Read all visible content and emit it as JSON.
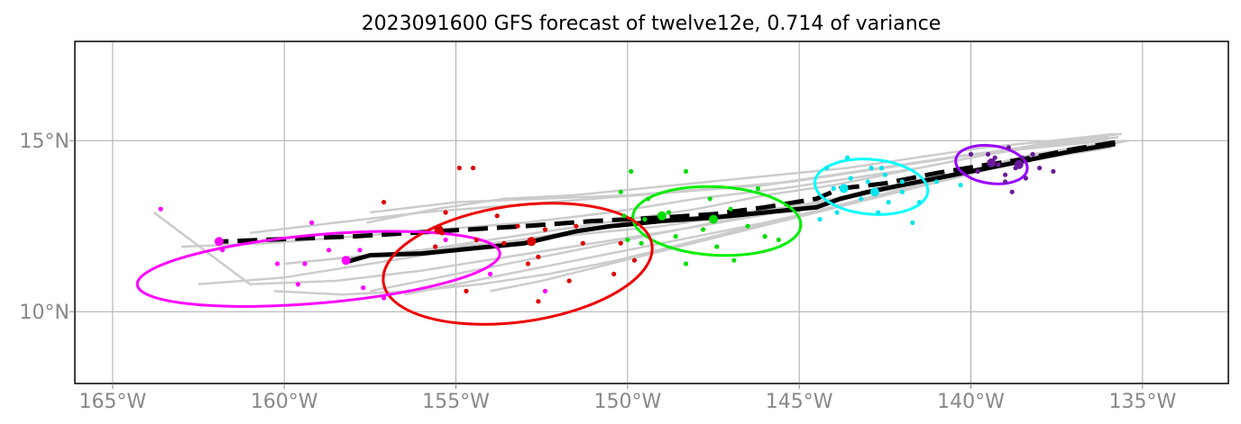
{
  "chart_data": {
    "type": "map-track",
    "title": "2023091600 GFS forecast of twelve12e, 0.714 of variance",
    "xlim": [
      -166.1,
      -132.5
    ],
    "ylim": [
      7.9,
      17.9
    ],
    "x_ticks": [
      -165,
      -160,
      -155,
      -150,
      -145,
      -140,
      -135
    ],
    "x_tick_labels": [
      "165°W",
      "160°W",
      "155°W",
      "150°W",
      "145°W",
      "140°W",
      "135°W"
    ],
    "y_ticks": [
      10,
      15
    ],
    "y_tick_labels": [
      "10°N",
      "15°N"
    ],
    "grid": true,
    "ensemble_color": "#cccccc",
    "ensemble_tracks": [
      [
        [
          -135.5,
          15.0
        ],
        [
          -137,
          14.8
        ],
        [
          -139,
          14.4
        ],
        [
          -141,
          13.9
        ],
        [
          -143,
          13.5
        ],
        [
          -145,
          13.1
        ],
        [
          -147.5,
          12.8
        ],
        [
          -150,
          12.6
        ],
        [
          -152.5,
          12.2
        ],
        [
          -155,
          11.8
        ],
        [
          -157.5,
          11.4
        ],
        [
          -160,
          11.0
        ],
        [
          -162.5,
          10.8
        ]
      ],
      [
        [
          -135.7,
          15.1
        ],
        [
          -137.5,
          14.9
        ],
        [
          -139.5,
          14.6
        ],
        [
          -141.5,
          14.2
        ],
        [
          -143.5,
          13.9
        ],
        [
          -145.5,
          13.6
        ],
        [
          -148,
          13.3
        ],
        [
          -150.5,
          12.9
        ],
        [
          -153,
          12.6
        ],
        [
          -155.5,
          12.4
        ],
        [
          -158,
          12.2
        ],
        [
          -160.5,
          12.0
        ],
        [
          -163,
          11.9
        ]
      ],
      [
        [
          -135.8,
          14.9
        ],
        [
          -137.5,
          14.6
        ],
        [
          -139.5,
          14.2
        ],
        [
          -141.5,
          13.8
        ],
        [
          -143.5,
          13.4
        ],
        [
          -145.5,
          13.0
        ],
        [
          -148,
          12.5
        ],
        [
          -150.5,
          12.0
        ],
        [
          -153,
          11.5
        ],
        [
          -155.5,
          11.0
        ],
        [
          -157.5,
          10.6
        ]
      ],
      [
        [
          -136,
          15.0
        ],
        [
          -138,
          14.8
        ],
        [
          -140,
          14.6
        ],
        [
          -142,
          14.3
        ],
        [
          -144,
          14.0
        ],
        [
          -146,
          13.7
        ],
        [
          -148.5,
          13.5
        ],
        [
          -151,
          13.3
        ],
        [
          -153.5,
          13.1
        ],
        [
          -156,
          12.9
        ],
        [
          -158.5,
          12.6
        ],
        [
          -161,
          12.3
        ]
      ],
      [
        [
          -135.9,
          14.8
        ],
        [
          -137.8,
          14.5
        ],
        [
          -139.8,
          14.1
        ],
        [
          -141.8,
          13.6
        ],
        [
          -143.8,
          13.1
        ],
        [
          -146,
          12.6
        ],
        [
          -148.5,
          12.1
        ],
        [
          -151,
          11.6
        ],
        [
          -153.5,
          11.1
        ],
        [
          -155.5,
          10.7
        ],
        [
          -156.5,
          10.5
        ]
      ],
      [
        [
          -135.6,
          15.2
        ],
        [
          -137.2,
          15.0
        ],
        [
          -139.2,
          14.7
        ],
        [
          -141.2,
          14.4
        ],
        [
          -143.2,
          14.1
        ],
        [
          -145.2,
          13.8
        ],
        [
          -147.5,
          13.6
        ],
        [
          -150,
          13.4
        ],
        [
          -152.5,
          13.3
        ],
        [
          -155,
          13.2
        ],
        [
          -157.5,
          12.9
        ]
      ],
      [
        [
          -136.2,
          14.9
        ],
        [
          -138.2,
          14.6
        ],
        [
          -140.2,
          14.1
        ],
        [
          -142.2,
          13.6
        ],
        [
          -144.2,
          13.2
        ],
        [
          -146.2,
          12.8
        ],
        [
          -148.5,
          12.4
        ],
        [
          -151,
          12.0
        ],
        [
          -153.5,
          11.6
        ],
        [
          -156,
          11.2
        ],
        [
          -158.5,
          10.9
        ],
        [
          -161,
          10.8
        ],
        [
          -163.8,
          12.9
        ]
      ],
      [
        [
          -135.4,
          15.0
        ],
        [
          -137,
          14.7
        ],
        [
          -139,
          14.3
        ],
        [
          -141,
          13.9
        ],
        [
          -143,
          13.5
        ],
        [
          -145,
          13.1
        ],
        [
          -147,
          12.8
        ],
        [
          -149,
          12.5
        ],
        [
          -151,
          12.3
        ],
        [
          -153,
          12.1
        ],
        [
          -155,
          11.9
        ],
        [
          -157,
          11.7
        ],
        [
          -159,
          11.5
        ]
      ],
      [
        [
          -136,
          15.1
        ],
        [
          -138,
          14.9
        ],
        [
          -140,
          14.5
        ],
        [
          -142,
          14.1
        ],
        [
          -144,
          13.7
        ],
        [
          -146,
          13.4
        ],
        [
          -148,
          13.0
        ],
        [
          -150,
          12.7
        ],
        [
          -152,
          12.4
        ],
        [
          -154,
          12.1
        ],
        [
          -156,
          11.8
        ],
        [
          -158,
          11.6
        ],
        [
          -160,
          11.4
        ]
      ],
      [
        [
          -136.5,
          14.8
        ],
        [
          -138.5,
          14.4
        ],
        [
          -140.5,
          13.9
        ],
        [
          -142.5,
          13.4
        ],
        [
          -144.5,
          12.9
        ],
        [
          -146.5,
          12.4
        ],
        [
          -148.5,
          11.9
        ],
        [
          -150.5,
          11.4
        ],
        [
          -152.5,
          10.9
        ],
        [
          -154,
          10.6
        ]
      ],
      [
        [
          -135.8,
          15.2
        ],
        [
          -137.6,
          15.0
        ],
        [
          -139.6,
          14.8
        ],
        [
          -141.6,
          14.5
        ],
        [
          -143.6,
          14.2
        ],
        [
          -145.6,
          14.0
        ],
        [
          -147.6,
          13.8
        ],
        [
          -149.6,
          13.6
        ],
        [
          -151.6,
          13.4
        ],
        [
          -153.6,
          13.3
        ],
        [
          -155.6,
          13.0
        ],
        [
          -157.6,
          12.6
        ]
      ],
      [
        [
          -136.3,
          14.9
        ],
        [
          -138.3,
          14.5
        ],
        [
          -140.3,
          14.0
        ],
        [
          -142.3,
          13.5
        ],
        [
          -144.3,
          13.0
        ],
        [
          -146.3,
          12.5
        ],
        [
          -148.3,
          12.0
        ],
        [
          -150.3,
          11.5
        ],
        [
          -152.3,
          11.1
        ],
        [
          -154.3,
          10.8
        ],
        [
          -156.3,
          10.6
        ],
        [
          -158.3,
          10.5
        ],
        [
          -160.3,
          10.6
        ]
      ]
    ],
    "series": [
      {
        "style": "solid",
        "points": [
          [
            -135.8,
            14.9
          ],
          [
            -137,
            14.7
          ],
          [
            -138,
            14.5
          ],
          [
            -139,
            14.3
          ],
          [
            -140,
            14.1
          ],
          [
            -141,
            13.9
          ],
          [
            -142,
            13.7
          ],
          [
            -143,
            13.5
          ],
          [
            -143.8,
            13.3
          ],
          [
            -144.5,
            13.05
          ],
          [
            -146,
            12.9
          ],
          [
            -147.5,
            12.75
          ],
          [
            -149,
            12.65
          ],
          [
            -150.5,
            12.5
          ],
          [
            -151.5,
            12.35
          ],
          [
            -153,
            12.0
          ],
          [
            -154.5,
            11.85
          ],
          [
            -156,
            11.7
          ],
          [
            -157.5,
            11.65
          ],
          [
            -158.2,
            11.45
          ]
        ]
      },
      {
        "style": "dashed",
        "points": [
          [
            -135.8,
            14.95
          ],
          [
            -137,
            14.75
          ],
          [
            -138.5,
            14.45
          ],
          [
            -139.5,
            14.3
          ],
          [
            -141,
            14.05
          ],
          [
            -142.5,
            13.75
          ],
          [
            -143.8,
            13.6
          ],
          [
            -144.5,
            13.3
          ],
          [
            -146,
            13.05
          ],
          [
            -147.5,
            12.85
          ],
          [
            -149,
            12.75
          ],
          [
            -151,
            12.65
          ],
          [
            -153,
            12.5
          ],
          [
            -155.5,
            12.35
          ],
          [
            -158,
            12.2
          ],
          [
            -161.8,
            12.05
          ]
        ]
      }
    ],
    "ellipses": [
      {
        "color": "#9900ff",
        "cx": -139.4,
        "cy": 14.3,
        "rx": 1.05,
        "ry": 0.55,
        "angle_deg": 8
      },
      {
        "color": "#00ffff",
        "cx": -142.9,
        "cy": 13.65,
        "rx": 1.65,
        "ry": 0.8,
        "angle_deg": 5
      },
      {
        "color": "#00ee00",
        "cx": -147.4,
        "cy": 12.65,
        "rx": 2.45,
        "ry": 1.0,
        "angle_deg": 3
      },
      {
        "color": "#ee0000",
        "cx": -153.2,
        "cy": 11.4,
        "rx": 3.95,
        "ry": 1.7,
        "angle_deg": -8
      },
      {
        "color": "#ff00ff",
        "cx": -159.0,
        "cy": 11.25,
        "rx": 5.3,
        "ry": 1.0,
        "angle_deg": -5
      }
    ],
    "scatter_groups": [
      {
        "color": "#6a1b9a",
        "points": [
          [
            -139.2,
            14.3
          ],
          [
            -138.7,
            14.2
          ],
          [
            -138.5,
            14.5
          ],
          [
            -139.8,
            14.1
          ],
          [
            -139.5,
            14.6
          ],
          [
            -138.2,
            14.6
          ],
          [
            -138.9,
            14.8
          ],
          [
            -139.0,
            13.8
          ],
          [
            -138.8,
            13.5
          ],
          [
            -140.0,
            14.6
          ],
          [
            -137.6,
            14.1
          ],
          [
            -138.4,
            13.9
          ],
          [
            -139.3,
            14.5
          ],
          [
            -138.0,
            14.2
          ],
          [
            -139.0,
            14.0
          ]
        ],
        "mean_marks": [
          [
            -139.4,
            14.35
          ],
          [
            -138.6,
            14.3
          ]
        ]
      },
      {
        "color": "#00e5ee",
        "points": [
          [
            -143.6,
            14.5
          ],
          [
            -142.9,
            14.2
          ],
          [
            -142.5,
            14.0
          ],
          [
            -142.0,
            13.8
          ],
          [
            -143.2,
            13.3
          ],
          [
            -142.7,
            12.9
          ],
          [
            -143.9,
            12.9
          ],
          [
            -144.4,
            12.7
          ],
          [
            -141.7,
            12.6
          ],
          [
            -141.5,
            13.2
          ],
          [
            -142.0,
            13.5
          ],
          [
            -143.5,
            13.9
          ],
          [
            -144.0,
            13.6
          ],
          [
            -143.0,
            13.8
          ],
          [
            -142.4,
            13.2
          ],
          [
            -141.0,
            13.8
          ],
          [
            -140.3,
            13.7
          ],
          [
            -144.2,
            14.2
          ],
          [
            -142.6,
            14.2
          ]
        ],
        "mean_marks": [
          [
            -143.7,
            13.6
          ],
          [
            -142.8,
            13.5
          ]
        ]
      },
      {
        "color": "#00dd00",
        "points": [
          [
            -149.9,
            14.1
          ],
          [
            -148.3,
            14.1
          ],
          [
            -150.2,
            13.5
          ],
          [
            -149.4,
            13.3
          ],
          [
            -147.6,
            13.3
          ],
          [
            -146.2,
            13.6
          ],
          [
            -149.5,
            12.7
          ],
          [
            -148.8,
            12.9
          ],
          [
            -147.0,
            13.0
          ],
          [
            -146.5,
            12.5
          ],
          [
            -147.8,
            12.4
          ],
          [
            -148.6,
            12.2
          ],
          [
            -149.6,
            12.0
          ],
          [
            -150.0,
            12.1
          ],
          [
            -146.0,
            12.2
          ],
          [
            -145.6,
            12.1
          ],
          [
            -147.4,
            11.9
          ],
          [
            -148.3,
            11.4
          ],
          [
            -146.9,
            11.5
          ],
          [
            -150.1,
            12.8
          ]
        ],
        "mean_marks": [
          [
            -149.0,
            12.8
          ],
          [
            -147.5,
            12.7
          ]
        ]
      },
      {
        "color": "#dd0000",
        "points": [
          [
            -154.9,
            14.2
          ],
          [
            -154.5,
            14.2
          ],
          [
            -157.1,
            13.2
          ],
          [
            -155.3,
            12.9
          ],
          [
            -153.8,
            12.8
          ],
          [
            -153.2,
            12.5
          ],
          [
            -152.4,
            12.4
          ],
          [
            -151.5,
            12.5
          ],
          [
            -155.4,
            12.3
          ],
          [
            -154.4,
            12.1
          ],
          [
            -153.6,
            12.0
          ],
          [
            -151.3,
            12.0
          ],
          [
            -150.4,
            11.1
          ],
          [
            -152.9,
            11.4
          ],
          [
            -152.6,
            11.6
          ],
          [
            -151.7,
            10.9
          ],
          [
            -154.7,
            10.6
          ],
          [
            -152.6,
            10.3
          ],
          [
            -149.8,
            11.5
          ],
          [
            -155.6,
            11.9
          ],
          [
            -150.2,
            12.0
          ]
        ],
        "mean_marks": [
          [
            -155.5,
            12.4
          ],
          [
            -152.8,
            12.05
          ]
        ]
      },
      {
        "color": "#ff00ff",
        "points": [
          [
            -163.6,
            13.0
          ],
          [
            -161.8,
            11.8
          ],
          [
            -159.2,
            12.6
          ],
          [
            -160.2,
            11.4
          ],
          [
            -159.4,
            11.4
          ],
          [
            -158.7,
            11.8
          ],
          [
            -157.8,
            11.8
          ],
          [
            -159.6,
            10.8
          ],
          [
            -157.7,
            10.7
          ],
          [
            -157.1,
            10.4
          ],
          [
            -154.0,
            11.1
          ],
          [
            -155.3,
            12.1
          ],
          [
            -152.4,
            10.6
          ]
        ],
        "mean_marks": [
          [
            -161.9,
            12.05
          ],
          [
            -158.2,
            11.5
          ]
        ]
      }
    ]
  }
}
